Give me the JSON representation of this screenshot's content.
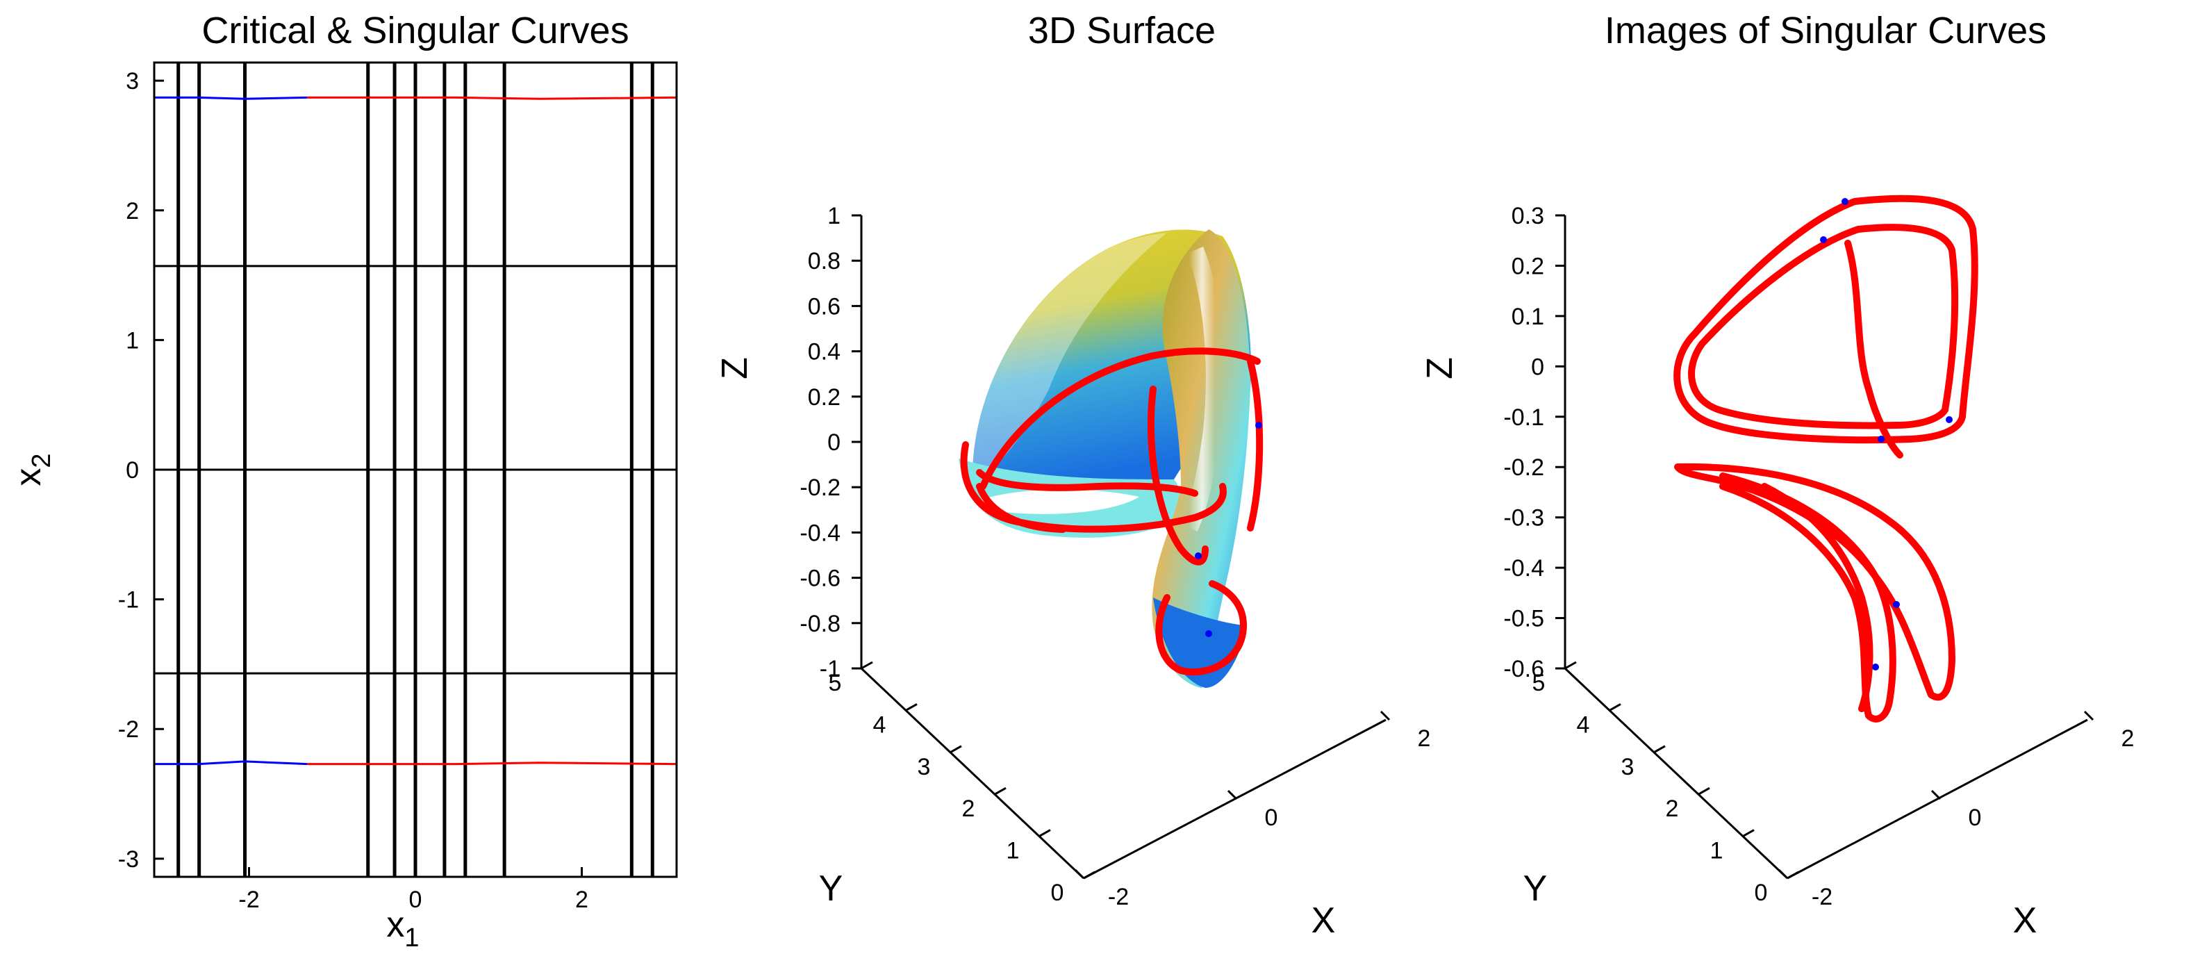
{
  "chart_data": [
    {
      "type": "line",
      "title": "Critical & Singular Curves",
      "xlabel": "x",
      "xlabel_sub": "1",
      "ylabel": "x",
      "ylabel_sub": "2",
      "xlim": [
        -3.14,
        3.14
      ],
      "ylim": [
        -3.14,
        3.14
      ],
      "xticks": [
        -2,
        0,
        2
      ],
      "yticks": [
        -3,
        -2,
        -1,
        0,
        1,
        2,
        3
      ],
      "critical_vertical_x": [
        -2.85,
        -2.6,
        -2.05,
        -0.57,
        -0.25,
        0.0,
        0.35,
        0.6,
        1.07,
        2.6,
        2.85
      ],
      "critical_horizontal_y": [
        1.5708,
        0,
        -1.5708
      ],
      "series": [
        {
          "color": "#0000ff",
          "points": [
            [
              -3.14,
              2.87
            ],
            [
              -2.6,
              2.87
            ],
            [
              -2.05,
              2.86
            ],
            [
              -1.3,
              2.87
            ]
          ]
        },
        {
          "color": "#ff0000",
          "points": [
            [
              -1.3,
              2.87
            ],
            [
              0.5,
              2.87
            ],
            [
              1.5,
              2.86
            ],
            [
              3.14,
              2.87
            ]
          ]
        },
        {
          "color": "#0000ff",
          "points": [
            [
              -3.14,
              -2.27
            ],
            [
              -2.6,
              -2.27
            ],
            [
              -2.05,
              -2.25
            ],
            [
              -1.3,
              -2.27
            ]
          ]
        },
        {
          "color": "#ff0000",
          "points": [
            [
              -1.3,
              -2.27
            ],
            [
              0.5,
              -2.27
            ],
            [
              1.5,
              -2.26
            ],
            [
              3.14,
              -2.27
            ]
          ]
        }
      ]
    },
    {
      "type": "surface3d",
      "title": "3D Surface",
      "xlabel": "X",
      "ylabel": "Y",
      "zlabel": "Z",
      "zlim": [
        -1,
        1
      ],
      "zticks": [
        "1",
        "0.8",
        "0.6",
        "0.4",
        "0.2",
        "0",
        "-0.2",
        "-0.4",
        "-0.6",
        "-0.8",
        "-1"
      ],
      "xticks": [
        "-2",
        "0",
        "2"
      ],
      "yticks": [
        "0",
        "1",
        "2",
        "3",
        "4",
        "5"
      ],
      "colors": {
        "surface_high": "#d9c21a",
        "surface_mid": "#5fe0e0",
        "surface_low": "#1a73e0",
        "curve": "#ff0000",
        "curve_point": "#0000ff"
      }
    },
    {
      "type": "line3d",
      "title": "Images of Singular Curves",
      "xlabel": "X",
      "ylabel": "Y",
      "zlabel": "Z",
      "zlim": [
        -0.6,
        0.3
      ],
      "zticks": [
        "0.3",
        "0.2",
        "0.1",
        "0",
        "-0.1",
        "-0.2",
        "-0.3",
        "-0.4",
        "-0.5",
        "-0.6"
      ],
      "xticks": [
        "-2",
        "0",
        "2"
      ],
      "yticks": [
        "0",
        "1",
        "2",
        "3",
        "4",
        "5"
      ],
      "colors": {
        "curve": "#ff0000",
        "curve_point": "#0000ff"
      }
    }
  ]
}
